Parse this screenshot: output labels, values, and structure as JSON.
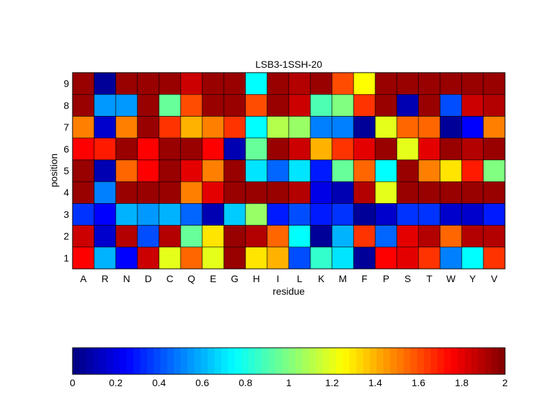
{
  "chart_data": {
    "type": "heatmap",
    "title": "LSB3-1SSH-20",
    "xlabel": "residue",
    "ylabel": "position",
    "x_categories": [
      "A",
      "R",
      "N",
      "D",
      "C",
      "Q",
      "E",
      "G",
      "H",
      "I",
      "L",
      "K",
      "M",
      "F",
      "P",
      "S",
      "T",
      "W",
      "Y",
      "V"
    ],
    "y_categories": [
      "1",
      "2",
      "3",
      "4",
      "5",
      "6",
      "7",
      "8",
      "9"
    ],
    "values": [
      [
        1.75,
        0.6,
        0.25,
        1.85,
        1.2,
        1.55,
        1.2,
        1.95,
        1.3,
        1.4,
        0.4,
        0.85,
        0.7,
        0.05,
        1.75,
        1.8,
        1.65,
        0.5,
        0.75,
        1.65
      ],
      [
        1.85,
        0.15,
        1.9,
        0.4,
        1.9,
        0.95,
        1.3,
        1.95,
        1.9,
        1.55,
        0.75,
        0.05,
        0.6,
        1.65,
        0.45,
        1.8,
        1.9,
        1.55,
        1.9,
        1.9
      ],
      [
        0.35,
        0.25,
        0.6,
        0.55,
        0.6,
        0.45,
        0.1,
        0.65,
        1.05,
        0.3,
        0.4,
        0.3,
        0.35,
        0.05,
        0.15,
        0.35,
        0.35,
        0.15,
        0.15,
        0.3
      ],
      [
        1.95,
        0.5,
        1.95,
        1.95,
        1.95,
        1.5,
        1.8,
        1.95,
        1.95,
        1.95,
        1.9,
        0.2,
        0.1,
        1.9,
        1.2,
        1.95,
        1.95,
        1.95,
        1.95,
        1.95
      ],
      [
        1.95,
        0.1,
        1.55,
        1.75,
        1.95,
        1.8,
        1.5,
        1.95,
        0.7,
        0.45,
        0.7,
        0.3,
        0.95,
        1.55,
        0.75,
        1.95,
        1.5,
        1.3,
        1.7,
        1.0
      ],
      [
        1.75,
        1.7,
        1.95,
        1.75,
        1.95,
        1.95,
        1.75,
        0.1,
        0.95,
        1.95,
        1.85,
        1.4,
        1.65,
        1.8,
        1.95,
        1.2,
        1.8,
        1.95,
        1.9,
        1.95
      ],
      [
        1.5,
        0.15,
        1.5,
        1.95,
        1.65,
        1.4,
        1.5,
        1.65,
        0.75,
        1.1,
        1.05,
        0.5,
        0.5,
        0.05,
        1.2,
        1.55,
        1.55,
        0.05,
        0.25,
        1.5
      ],
      [
        1.95,
        0.55,
        0.55,
        1.95,
        0.95,
        1.6,
        1.95,
        1.95,
        1.6,
        1.95,
        1.85,
        0.9,
        1.0,
        1.65,
        1.95,
        0.1,
        1.95,
        0.4,
        1.85,
        1.9
      ],
      [
        1.95,
        0.05,
        1.95,
        1.95,
        1.95,
        1.85,
        1.95,
        1.95,
        0.75,
        1.95,
        1.9,
        1.95,
        1.6,
        1.25,
        1.95,
        1.95,
        1.95,
        1.95,
        1.95,
        1.95
      ]
    ],
    "color_range": [
      0,
      2
    ],
    "colorbar": {
      "orientation": "horizontal",
      "placement": "bottom",
      "ticks": [
        "0",
        "0.2",
        "0.4",
        "0.6",
        "0.8",
        "1",
        "1.2",
        "1.4",
        "1.6",
        "1.8",
        "2"
      ]
    },
    "colormap": "jet"
  }
}
